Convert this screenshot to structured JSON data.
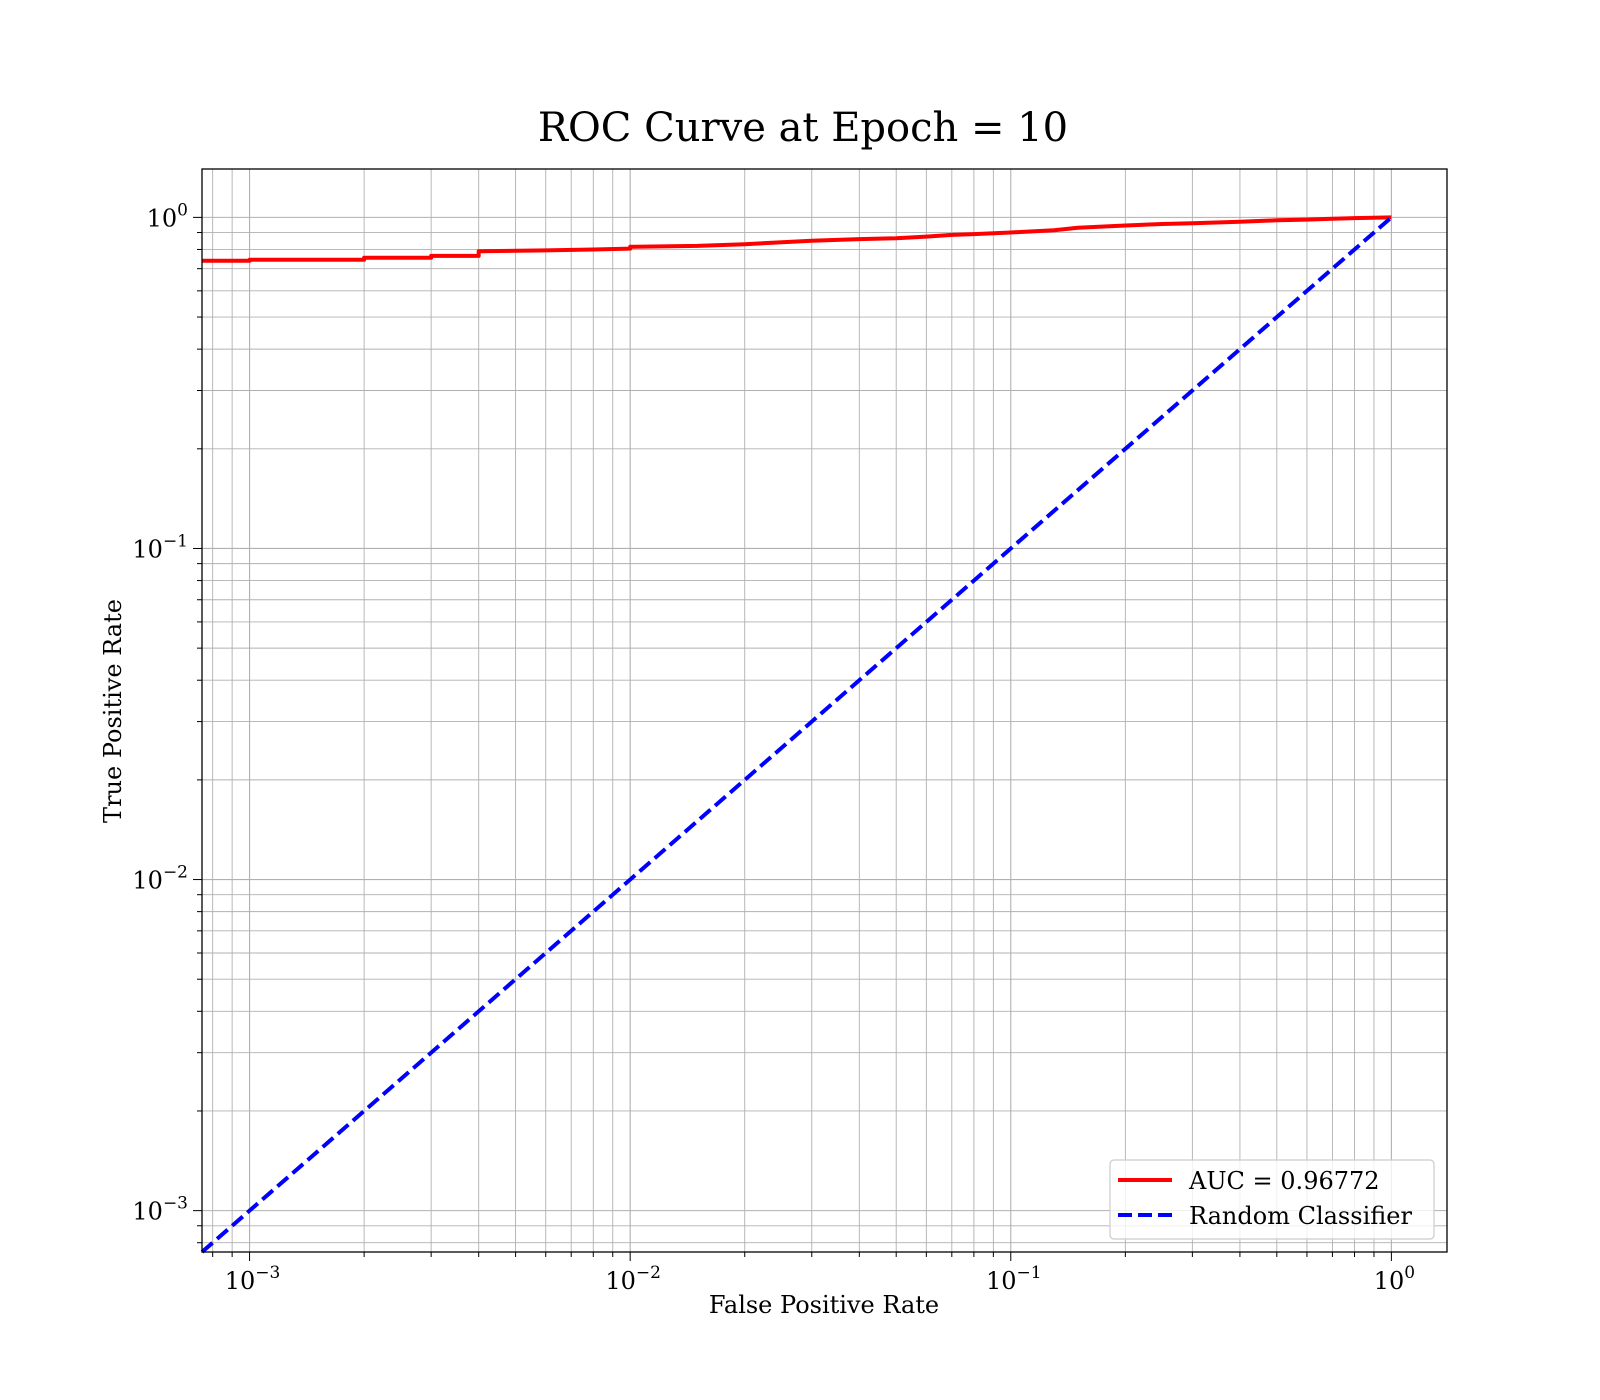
{
  "chart_data": {
    "type": "line",
    "title": "ROC Curve at Epoch = 10",
    "xlabel": "False Positive Rate",
    "ylabel": "True Positive Rate",
    "xscale": "log",
    "yscale": "log",
    "xlim": [
      0.00075,
      1.4
    ],
    "ylim": [
      0.00075,
      1.4
    ],
    "grid": true,
    "grid_minor": true,
    "legend_position": "lower-right",
    "x_ticks": [
      {
        "base": "10",
        "exp": "−3",
        "value": 0.001
      },
      {
        "base": "10",
        "exp": "−2",
        "value": 0.01
      },
      {
        "base": "10",
        "exp": "−1",
        "value": 0.1
      },
      {
        "base": "10",
        "exp": "0",
        "value": 1
      }
    ],
    "y_ticks": [
      {
        "base": "10",
        "exp": "−3",
        "value": 0.001
      },
      {
        "base": "10",
        "exp": "−2",
        "value": 0.01
      },
      {
        "base": "10",
        "exp": "−1",
        "value": 0.1
      },
      {
        "base": "10",
        "exp": "0",
        "value": 1
      }
    ],
    "series": [
      {
        "name": "AUC = 0.96772",
        "color": "#ff0000",
        "style": "solid",
        "x": [
          0.00075,
          0.001,
          0.001,
          0.002,
          0.002,
          0.003,
          0.003,
          0.004,
          0.004,
          0.006,
          0.008,
          0.01,
          0.01,
          0.015,
          0.02,
          0.03,
          0.04,
          0.05,
          0.06,
          0.07,
          0.08,
          0.1,
          0.13,
          0.15,
          0.2,
          0.25,
          0.3,
          0.4,
          0.5,
          0.6,
          0.7,
          0.8,
          1.0
        ],
        "y": [
          0.74,
          0.74,
          0.745,
          0.745,
          0.755,
          0.755,
          0.765,
          0.765,
          0.79,
          0.795,
          0.8,
          0.805,
          0.815,
          0.82,
          0.83,
          0.85,
          0.86,
          0.865,
          0.875,
          0.885,
          0.89,
          0.9,
          0.915,
          0.93,
          0.945,
          0.955,
          0.96,
          0.97,
          0.98,
          0.985,
          0.99,
          0.995,
          1.0
        ]
      },
      {
        "name": "Random Classifier",
        "color": "#0000ff",
        "style": "dashed",
        "x": [
          0.00075,
          1.0
        ],
        "y": [
          0.00075,
          1.0
        ]
      }
    ]
  }
}
